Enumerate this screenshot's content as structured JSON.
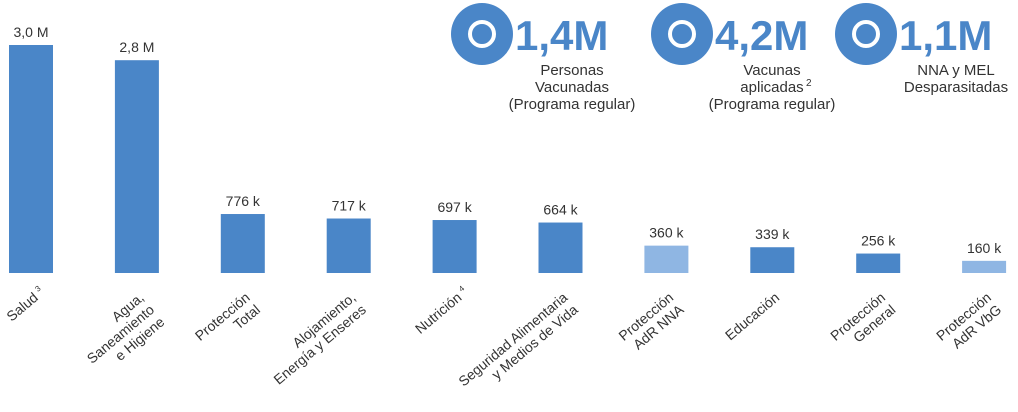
{
  "chart_data": {
    "type": "bar",
    "categories": [
      [
        "Salud"
      ],
      [
        "Agua,",
        "Saneamiento",
        "e Higiene"
      ],
      [
        "Protección",
        "Total"
      ],
      [
        "Alojamiento,",
        "Energía y Enseres"
      ],
      [
        "Nutrición"
      ],
      [
        "Seguridad Alimentaria",
        "y Medios de Vida"
      ],
      [
        "Protección",
        "AdR NNA"
      ],
      [
        "Educación"
      ],
      [
        "Protección",
        "General"
      ],
      [
        "Protección",
        "AdR VbG"
      ]
    ],
    "category_notes": [
      "3",
      null,
      null,
      null,
      "4",
      null,
      null,
      null,
      null,
      null
    ],
    "values": [
      3000000,
      2800000,
      776000,
      717000,
      697000,
      664000,
      360000,
      339000,
      256000,
      160000
    ],
    "value_labels": [
      "3,0 M",
      "2,8 M",
      "776 k",
      "717 k",
      "697 k",
      "664 k",
      "360 k",
      "339 k",
      "256 k",
      "160 k"
    ],
    "colors": [
      "#4a86c8",
      "#4a86c8",
      "#4a86c8",
      "#4a86c8",
      "#4a86c8",
      "#4a86c8",
      "#8fb6e3",
      "#4a86c8",
      "#4a86c8",
      "#8fb6e3"
    ],
    "ylim": [
      0,
      3000000
    ],
    "kpis": [
      {
        "value": 1400000,
        "label": "1,4M",
        "lines": [
          "Personas",
          "Vacunadas",
          "(Programa regular)"
        ],
        "note": null
      },
      {
        "value": 4200000,
        "label": "4,2M",
        "lines": [
          "Vacunas",
          "aplicadas",
          "(Programa regular)"
        ],
        "note": "2"
      },
      {
        "value": 1100000,
        "label": "1,1M",
        "lines": [
          "NNA y MEL",
          "Desparasitadas"
        ],
        "note": null
      }
    ]
  }
}
